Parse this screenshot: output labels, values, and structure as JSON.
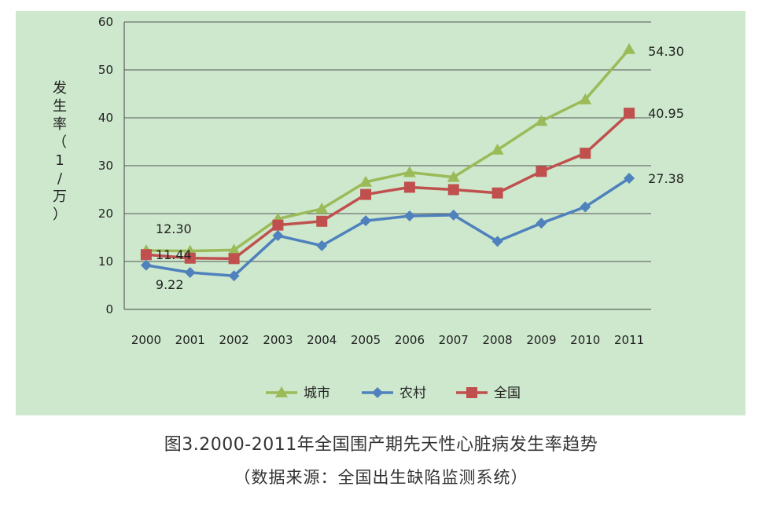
{
  "chart_data": {
    "type": "line",
    "ylabel": "发生率（1/万）",
    "ylim": [
      0,
      60
    ],
    "yticks": [
      0,
      10,
      20,
      30,
      40,
      50,
      60
    ],
    "categories": [
      "2000",
      "2001",
      "2002",
      "2003",
      "2004",
      "2005",
      "2006",
      "2007",
      "2008",
      "2009",
      "2010",
      "2011"
    ],
    "grid": true,
    "legend_position": "bottom",
    "series": [
      {
        "name": "城市",
        "color": "#9bbb59",
        "marker": "triangle",
        "values": [
          12.3,
          12.2,
          12.4,
          18.9,
          21.0,
          26.6,
          28.6,
          27.6,
          33.3,
          39.3,
          43.8,
          54.3
        ]
      },
      {
        "name": "农村",
        "color": "#4f81bd",
        "marker": "diamond",
        "values": [
          9.22,
          7.7,
          7.0,
          15.4,
          13.3,
          18.5,
          19.5,
          19.7,
          14.2,
          18.0,
          21.4,
          27.38
        ]
      },
      {
        "name": "全国",
        "color": "#c0504d",
        "marker": "square",
        "values": [
          11.44,
          10.7,
          10.6,
          17.6,
          18.4,
          24.0,
          25.5,
          25.0,
          24.3,
          28.8,
          32.6,
          40.95
        ]
      }
    ],
    "annotations": [
      {
        "series": 0,
        "index": 0,
        "text": "12.30"
      },
      {
        "series": 2,
        "index": 0,
        "text": "11.44"
      },
      {
        "series": 1,
        "index": 0,
        "text": "9.22"
      },
      {
        "series": 0,
        "index": 11,
        "text": "54.30"
      },
      {
        "series": 2,
        "index": 11,
        "text": "40.95"
      },
      {
        "series": 1,
        "index": 11,
        "text": "27.38"
      }
    ]
  },
  "caption": "图3.2000-2011年全国围产期先天性心脏病发生率趋势",
  "source": "（数据来源：全国出生缺陷监测系统）"
}
